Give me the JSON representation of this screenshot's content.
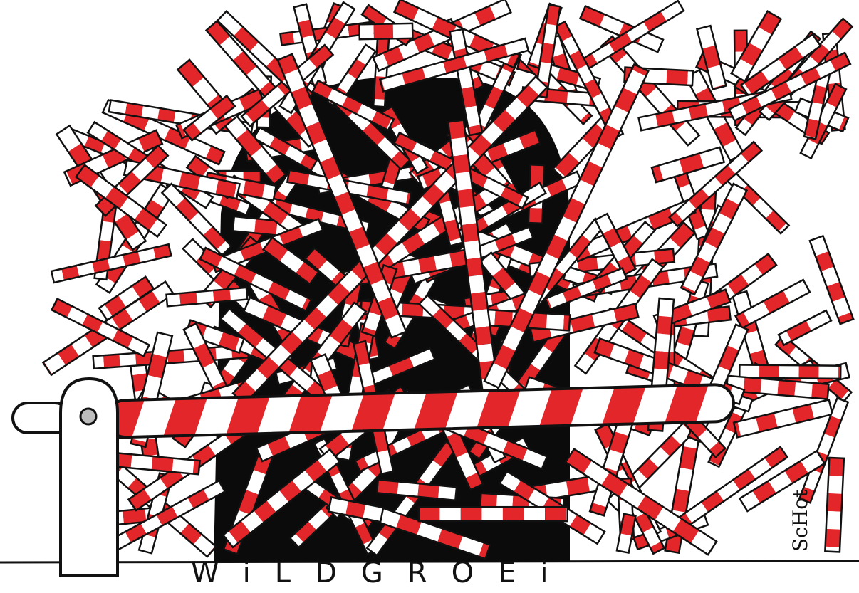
{
  "caption": "WiLDGROEi",
  "signature": "ScHot",
  "colors": {
    "stripe_red": "#e3262a",
    "stripe_white": "#ffffff",
    "outline": "#111111",
    "background": "#ffffff"
  },
  "icons": [
    "barrier-post",
    "barrier-arm",
    "tangled-barrier-poles"
  ]
}
